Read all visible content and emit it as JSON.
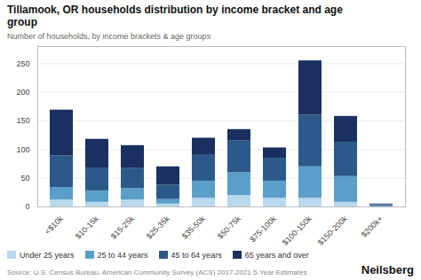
{
  "chart_data": {
    "type": "bar",
    "stacked": true,
    "title": "Tillamook, OR households distribution by income bracket and age\ngroup",
    "subtitle": "Number of households, by income brackets & age groups",
    "source": "Source: U.S. Census Bureau, American Community Survey (ACS) 2017-2021 5-Year Estimates",
    "annotations": [
      "Neilsberg"
    ],
    "categories": [
      "<$10k",
      "$10-15k",
      "$15-25k",
      "$25-35k",
      "$35-50k",
      "$50-75k",
      "$75-100k",
      "$100-150k",
      "$150-200k",
      "$200k+"
    ],
    "series": [
      {
        "name": "Under 25 years",
        "color": "#b8d9ed",
        "values": [
          12,
          8,
          12,
          5,
          15,
          20,
          15,
          15,
          8,
          0
        ]
      },
      {
        "name": "25 to 44 years",
        "color": "#5b9ec9",
        "values": [
          22,
          20,
          20,
          8,
          30,
          40,
          30,
          55,
          45,
          2
        ]
      },
      {
        "name": "45 to 64 years",
        "color": "#2b5a8a",
        "values": [
          55,
          40,
          35,
          25,
          45,
          55,
          40,
          90,
          60,
          2
        ]
      },
      {
        "name": "65 years and over",
        "color": "#1a3060",
        "values": [
          80,
          50,
          40,
          32,
          30,
          20,
          18,
          95,
          45,
          1
        ]
      }
    ],
    "ylim": [
      0,
      280
    ],
    "yticks": [
      0,
      50,
      100,
      150,
      200,
      250
    ],
    "grid": true,
    "legend": "bottom"
  }
}
